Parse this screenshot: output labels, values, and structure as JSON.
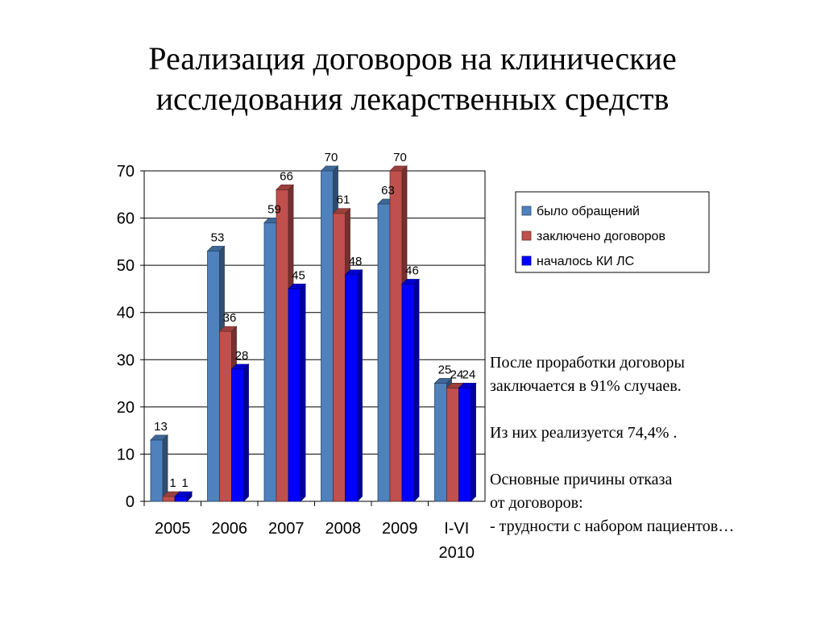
{
  "slide": {
    "title_lines": [
      "Реализация договоров на клинические",
      "исследования лекарственных средств"
    ]
  },
  "notes": {
    "p1_line1": "После проработки  договоры",
    "p1_line2": "заключается в 91% случаев.",
    "p2": "Из них реализуется 74,4% .",
    "p3_line1": "Основные причины отказа",
    "p3_line2": "от договоров:",
    "p3_line3": "- трудности с набором пациентов…"
  },
  "chart_data": {
    "type": "bar",
    "categories": [
      "2005",
      "2006",
      "2007",
      "2008",
      "2009",
      "I-VI 2010"
    ],
    "series": [
      {
        "name": "было обращений",
        "values": [
          13,
          53,
          59,
          70,
          63,
          25
        ],
        "color": "#4F81BD"
      },
      {
        "name": "заключено договоров",
        "values": [
          1,
          36,
          66,
          61,
          70,
          24
        ],
        "color": "#C0504D"
      },
      {
        "name": "началось КИ ЛС",
        "values": [
          1,
          28,
          45,
          48,
          46,
          24
        ],
        "color": "#0000FF"
      }
    ],
    "yticks": [
      0,
      10,
      20,
      30,
      40,
      50,
      60,
      70
    ],
    "ylim": [
      0,
      70
    ],
    "grid": true,
    "legend": "right",
    "style": "3d-clustered-column"
  }
}
